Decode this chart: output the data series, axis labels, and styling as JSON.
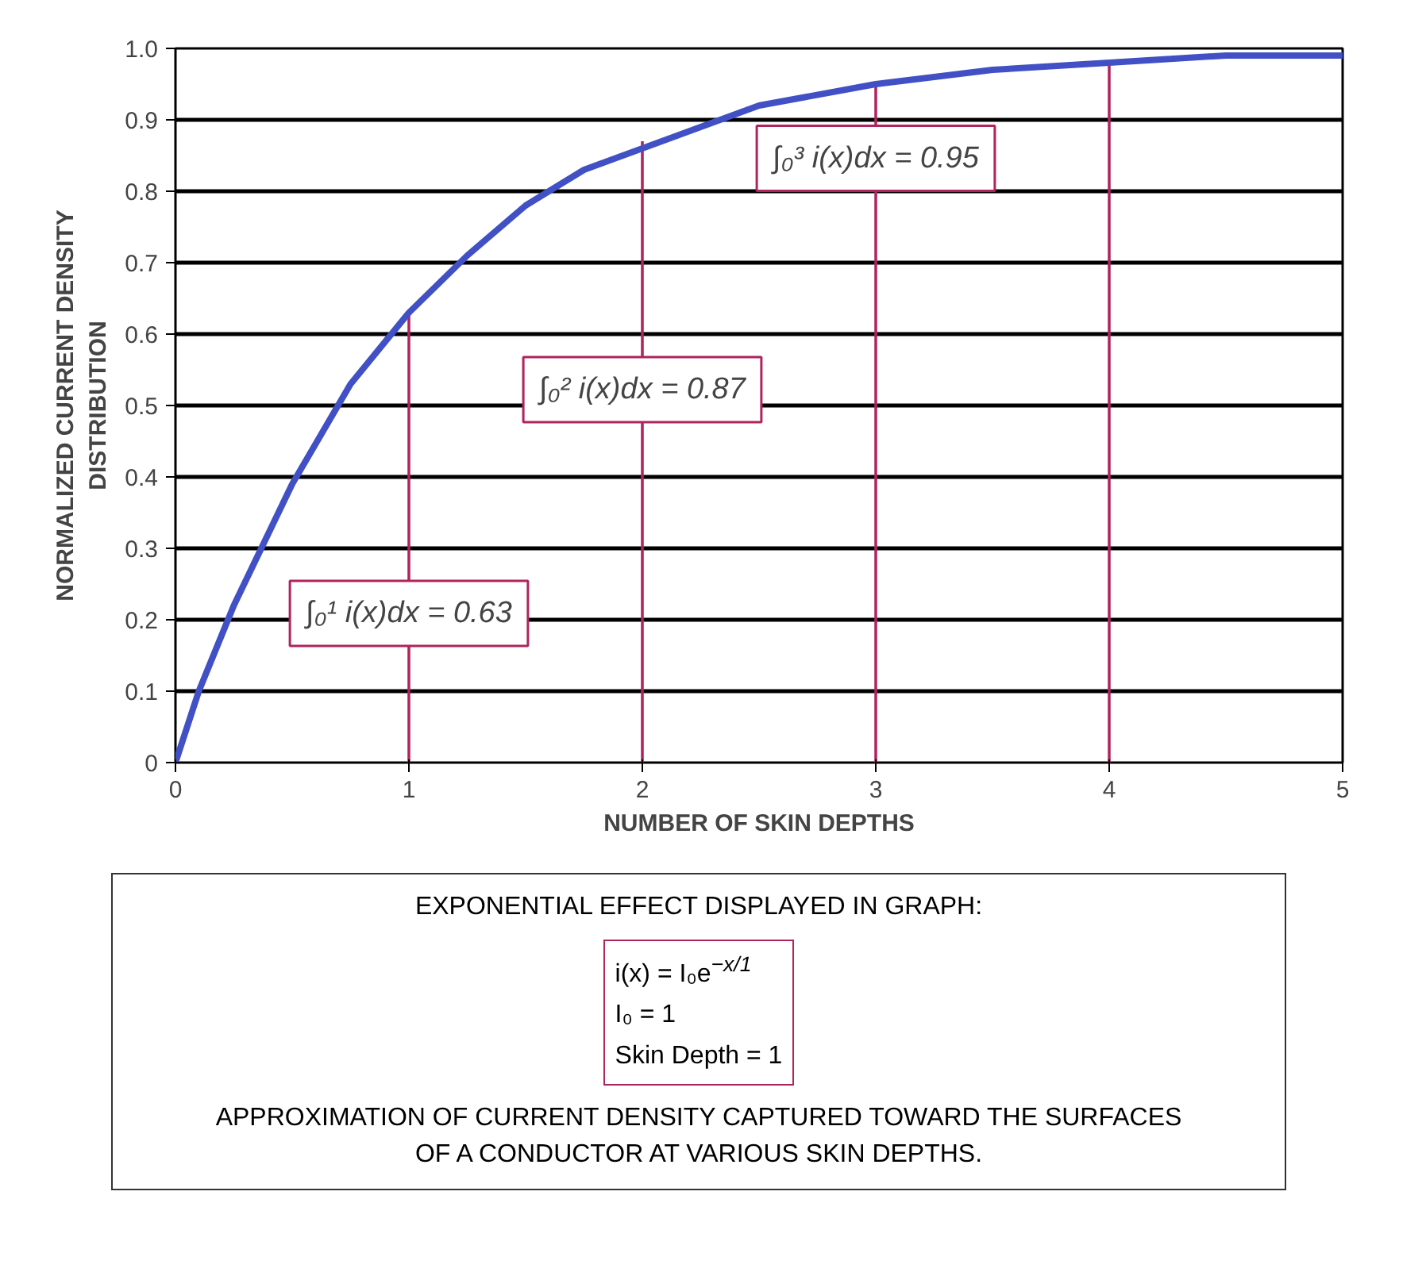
{
  "chart_data": {
    "type": "line",
    "xlabel": "NUMBER OF SKIN DEPTHS",
    "ylabel": "NORMALIZED CURRENT DENSITY\nDISTRIBUTION",
    "series": [
      {
        "color": "#4150c4",
        "x": [
          0,
          0.1,
          0.25,
          0.5,
          0.75,
          1,
          1.25,
          1.5,
          1.75,
          2,
          2.5,
          3,
          3.5,
          4,
          4.5,
          5
        ],
        "values": [
          0,
          0.1,
          0.22,
          0.39,
          0.53,
          0.63,
          0.71,
          0.78,
          0.83,
          0.86,
          0.92,
          0.95,
          0.97,
          0.98,
          0.99,
          0.99
        ]
      },
      {
        "type": "bar",
        "color": "#b0245e",
        "x": [
          1,
          2,
          3,
          4
        ],
        "values": [
          0.63,
          0.87,
          0.95,
          0.98
        ]
      }
    ],
    "xlim": [
      0,
      5
    ],
    "xticks": [
      0,
      1,
      2,
      3,
      4,
      5
    ],
    "ylim": [
      0,
      1
    ],
    "yticks": [
      0,
      0.1,
      0.2,
      0.3,
      0.4,
      0.5,
      0.6,
      0.7,
      0.8,
      0.9,
      {
        "value": 1,
        "label": "1.0"
      }
    ],
    "grid": "y",
    "annotations": [
      "∫₀¹ i(x)dx = 0.63",
      "∫₀² i(x)dx = 0.87",
      "∫₀³ i(x)dx = 0.95",
      "EXPONENTIAL EFFECT DISPLAYED IN GRAPH:",
      "i(x) = I₀e$^{−x/1}$",
      "I₀ = 1",
      "Skin Depth = 1",
      "APPROXIMATION OF CURRENT DENSITY CAPTURED TOWARD THE SURFACES OF A CONDUCTOR AT VARIOUS SKIN DEPTHS."
    ]
  }
}
